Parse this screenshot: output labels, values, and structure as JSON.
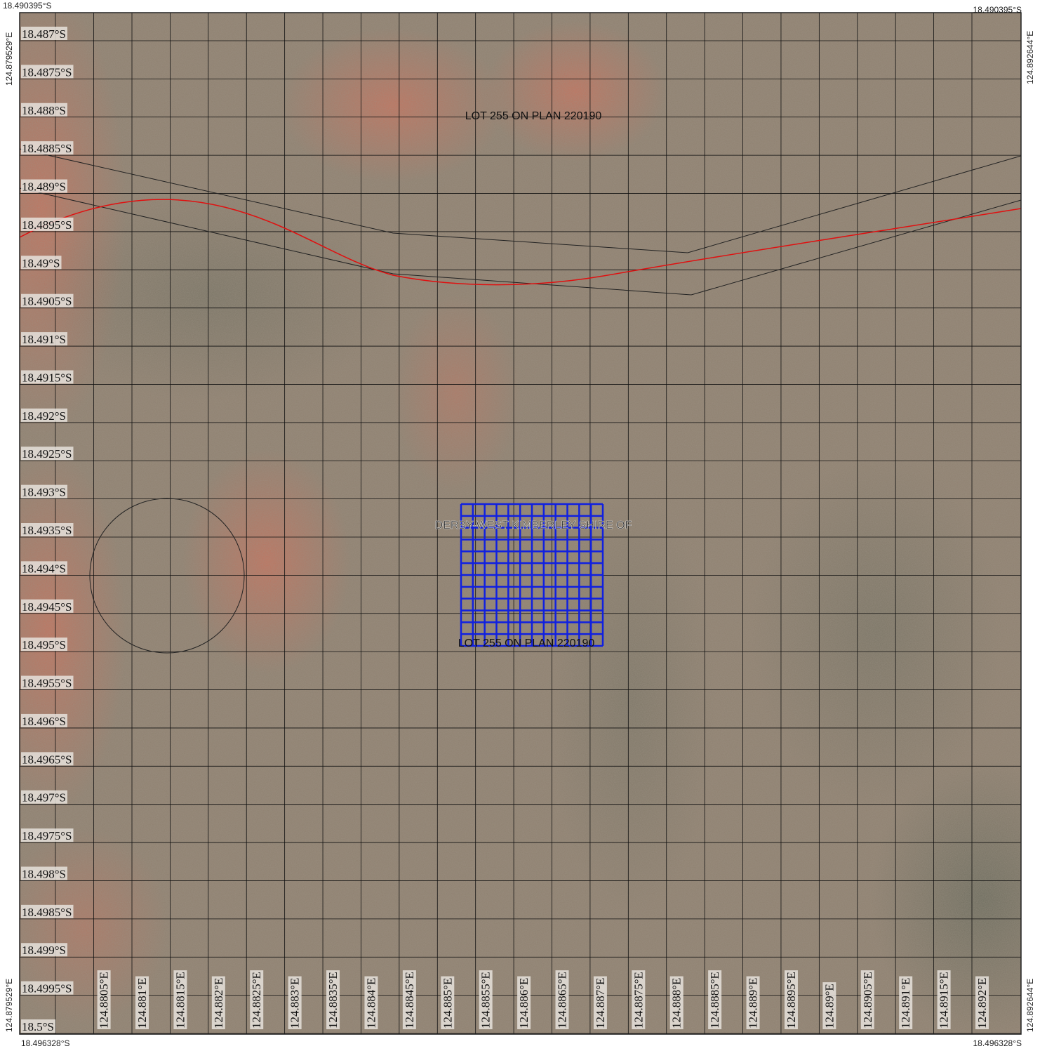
{
  "corners": {
    "top_left": "18.490395°S",
    "top_right": "18.490395°S",
    "bottom_left": "18.496328°S",
    "bottom_right": "18.496328°S",
    "left_top": "124.879529°E",
    "left_bottom": "124.879529°E",
    "right_top": "124.892644°E",
    "right_bottom": "124.892644°E"
  },
  "lat_grid": [
    {
      "value": 18.487,
      "label": "18.487°S"
    },
    {
      "value": 18.4875,
      "label": "18.4875°S"
    },
    {
      "value": 18.488,
      "label": "18.488°S"
    },
    {
      "value": 18.4885,
      "label": "18.4885°S"
    },
    {
      "value": 18.489,
      "label": "18.489°S"
    },
    {
      "value": 18.4895,
      "label": "18.4895°S"
    },
    {
      "value": 18.49,
      "label": "18.49°S"
    },
    {
      "value": 18.4905,
      "label": "18.4905°S"
    },
    {
      "value": 18.491,
      "label": "18.491°S"
    },
    {
      "value": 18.4915,
      "label": "18.4915°S"
    },
    {
      "value": 18.492,
      "label": "18.492°S"
    },
    {
      "value": 18.4925,
      "label": "18.4925°S"
    },
    {
      "value": 18.493,
      "label": "18.493°S"
    },
    {
      "value": 18.4935,
      "label": "18.4935°S"
    },
    {
      "value": 18.494,
      "label": "18.494°S"
    },
    {
      "value": 18.4945,
      "label": "18.4945°S"
    },
    {
      "value": 18.495,
      "label": "18.495°S"
    },
    {
      "value": 18.4955,
      "label": "18.4955°S"
    },
    {
      "value": 18.496,
      "label": "18.496°S"
    },
    {
      "value": 18.4965,
      "label": "18.4965°S"
    },
    {
      "value": 18.497,
      "label": "18.497°S"
    },
    {
      "value": 18.4975,
      "label": "18.4975°S"
    },
    {
      "value": 18.498,
      "label": "18.498°S"
    },
    {
      "value": 18.4985,
      "label": "18.4985°S"
    },
    {
      "value": 18.499,
      "label": "18.499°S"
    },
    {
      "value": 18.4995,
      "label": "18.4995°S"
    },
    {
      "value": 18.5,
      "label": "18.5°S"
    }
  ],
  "lon_grid": [
    {
      "value": 124.8805,
      "label": "124.8805°E"
    },
    {
      "value": 124.881,
      "label": "124.881°E"
    },
    {
      "value": 124.8815,
      "label": "124.8815°E"
    },
    {
      "value": 124.882,
      "label": "124.882°E"
    },
    {
      "value": 124.8825,
      "label": "124.8825°E"
    },
    {
      "value": 124.883,
      "label": "124.883°E"
    },
    {
      "value": 124.8835,
      "label": "124.8835°E"
    },
    {
      "value": 124.884,
      "label": "124.884°E"
    },
    {
      "value": 124.8845,
      "label": "124.8845°E"
    },
    {
      "value": 124.885,
      "label": "124.885°E"
    },
    {
      "value": 124.8855,
      "label": "124.8855°E"
    },
    {
      "value": 124.886,
      "label": "124.886°E"
    },
    {
      "value": 124.8865,
      "label": "124.8865°E"
    },
    {
      "value": 124.887,
      "label": "124.887°E"
    },
    {
      "value": 124.8875,
      "label": "124.8875°E"
    },
    {
      "value": 124.888,
      "label": "124.888°E"
    },
    {
      "value": 124.8885,
      "label": "124.8885°E"
    },
    {
      "value": 124.889,
      "label": "124.889°E"
    },
    {
      "value": 124.8895,
      "label": "124.8895°E"
    },
    {
      "value": 124.89,
      "label": "124.89°E"
    },
    {
      "value": 124.8905,
      "label": "124.8905°E"
    },
    {
      "value": 124.891,
      "label": "124.891°E"
    },
    {
      "value": 124.8915,
      "label": "124.8915°E"
    },
    {
      "value": 124.892,
      "label": "124.892°E"
    }
  ],
  "labels": {
    "parcel_north": "LOT 255 ON PLAN 220190",
    "shire": "DERBY-WEST KIMBERLEY  SHIRE OF",
    "parcel_south": "LOT 255 ON PLAN 220190"
  }
}
